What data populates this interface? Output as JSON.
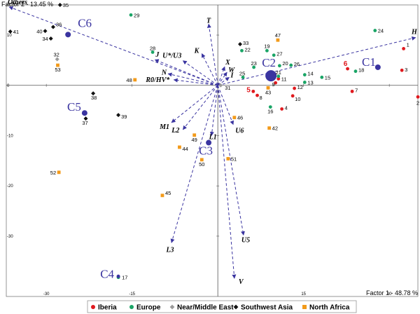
{
  "chart_data": {
    "type": "scatter",
    "xlabel": "Factor 1 - 48.78 %",
    "ylabel": "Factor 2 - 13.45 %",
    "xlim": [
      -37,
      35
    ],
    "ylim": [
      -42,
      16
    ],
    "x_ticks": [
      -30,
      -15,
      0,
      15,
      30
    ],
    "y_ticks": [
      -30,
      -20,
      -10,
      0,
      10
    ],
    "grid": false,
    "legend_position": "bottom-right",
    "colors": {
      "Iberia": "#e0191e",
      "Europe": "#1aa566",
      "Near/Middle East": "#9a9a9a",
      "Southwest Asia": "#111111",
      "North Africa": "#f29a1a",
      "variables": "#3a34a0",
      "centroids": "#3a34a0"
    },
    "series": [
      {
        "name": "Iberia",
        "marker": "circle",
        "points": [
          {
            "label": "1",
            "x": 32.5,
            "y": 7.3
          },
          {
            "label": "2",
            "x": 35.0,
            "y": -2.3
          },
          {
            "label": "3",
            "x": 32.2,
            "y": 3.0
          },
          {
            "label": "4",
            "x": 11.2,
            "y": -4.7
          },
          {
            "label": "5",
            "x": 6.2,
            "y": -1.2
          },
          {
            "label": "6",
            "x": 22.7,
            "y": 3.3
          },
          {
            "label": "7",
            "x": 23.5,
            "y": -1.2
          },
          {
            "label": "8",
            "x": 6.9,
            "y": -2.0
          },
          {
            "label": "9",
            "x": 10.1,
            "y": 0.5
          },
          {
            "label": "10",
            "x": 13.1,
            "y": -2.1
          },
          {
            "label": "11",
            "x": 10.6,
            "y": 1.3
          },
          {
            "label": "12",
            "x": 13.4,
            "y": -0.6
          }
        ]
      },
      {
        "name": "Europe",
        "marker": "circle",
        "points": [
          {
            "label": "13",
            "x": 15.2,
            "y": 0.6
          },
          {
            "label": "14",
            "x": 15.2,
            "y": 2.1
          },
          {
            "label": "15",
            "x": 18.2,
            "y": 1.6
          },
          {
            "label": "16",
            "x": 9.2,
            "y": -4.3
          },
          {
            "label": "17",
            "x": -17.4,
            "y": -38.2
          },
          {
            "label": "18",
            "x": 24.1,
            "y": 2.8
          },
          {
            "label": "19",
            "x": 8.6,
            "y": 6.9
          },
          {
            "label": "20",
            "x": 10.8,
            "y": 3.9
          },
          {
            "label": "21",
            "x": 10.6,
            "y": 1.8
          },
          {
            "label": "22",
            "x": 4.2,
            "y": 6.9
          },
          {
            "label": "23",
            "x": 6.3,
            "y": 3.6
          },
          {
            "label": "24",
            "x": 27.5,
            "y": 10.9
          },
          {
            "label": "25",
            "x": 4.4,
            "y": 1.6
          },
          {
            "label": "26",
            "x": 12.8,
            "y": 4.0
          },
          {
            "label": "27",
            "x": 9.8,
            "y": 6.0
          },
          {
            "label": "28",
            "x": -11.4,
            "y": 6.6
          },
          {
            "label": "29",
            "x": -15.2,
            "y": 14.0
          }
        ]
      },
      {
        "name": "Near/Middle East",
        "marker": "diamond",
        "points": [
          {
            "label": "31",
            "x": 0.5,
            "y": 0.0
          },
          {
            "label": "32",
            "x": -28.1,
            "y": 5.2
          }
        ]
      },
      {
        "name": "Southwest Asia",
        "marker": "diamond",
        "points": [
          {
            "label": "33",
            "x": 3.9,
            "y": 8.2
          },
          {
            "label": "34",
            "x": -29.2,
            "y": 9.3
          },
          {
            "label": "35",
            "x": -27.6,
            "y": 16.0
          },
          {
            "label": "36",
            "x": -28.8,
            "y": 11.6
          },
          {
            "label": "37",
            "x": -23.1,
            "y": -6.6
          },
          {
            "label": "38",
            "x": -21.8,
            "y": -1.6
          },
          {
            "label": "39",
            "x": -17.4,
            "y": -5.9
          },
          {
            "label": "40",
            "x": -30.2,
            "y": 10.8
          },
          {
            "label": "41",
            "x": -36.3,
            "y": 10.7
          }
        ]
      },
      {
        "name": "North Africa",
        "marker": "square",
        "points": [
          {
            "label": "42",
            "x": 9.0,
            "y": -8.5
          },
          {
            "label": "43",
            "x": 8.8,
            "y": -0.5
          },
          {
            "label": "44",
            "x": -6.7,
            "y": -12.3
          },
          {
            "label": "45",
            "x": -9.7,
            "y": -21.9
          },
          {
            "label": "46",
            "x": 2.9,
            "y": -6.4
          },
          {
            "label": "47",
            "x": 10.5,
            "y": 9.0
          },
          {
            "label": "48",
            "x": -14.5,
            "y": 1.1
          },
          {
            "label": "49",
            "x": -4.1,
            "y": -9.9
          },
          {
            "label": "50",
            "x": -2.8,
            "y": -14.8
          },
          {
            "label": "51",
            "x": 1.8,
            "y": -14.6
          },
          {
            "label": "52",
            "x": -27.8,
            "y": -17.3
          },
          {
            "label": "53",
            "x": -28.0,
            "y": 4.0
          }
        ]
      }
    ],
    "centroids": [
      {
        "label": "C1",
        "x": 28.0,
        "y": 3.6,
        "size": "medium"
      },
      {
        "label": "C2",
        "x": 9.3,
        "y": 1.9,
        "size": "large"
      },
      {
        "label": "C3",
        "x": -1.6,
        "y": -11.4,
        "size": "medium"
      },
      {
        "label": "C4",
        "x": -17.4,
        "y": -38.0,
        "size": "small"
      },
      {
        "label": "C5",
        "x": -23.3,
        "y": -5.5,
        "size": "medium"
      },
      {
        "label": "C6",
        "x": -26.2,
        "y": 10.1,
        "size": "medium"
      }
    ],
    "variables": [
      {
        "label": "Others",
        "x": -36.5,
        "y": 15.6
      },
      {
        "label": "H",
        "x": 34.6,
        "y": 9.5
      },
      {
        "label": "T",
        "x": -1.6,
        "y": 12.2
      },
      {
        "label": "K",
        "x": -2.8,
        "y": 6.3
      },
      {
        "label": "U*/U3",
        "x": -6.1,
        "y": 4.9
      },
      {
        "label": "J",
        "x": -11.0,
        "y": 5.1
      },
      {
        "label": "N",
        "x": -8.7,
        "y": 2.3
      },
      {
        "label": "R0/HV*",
        "x": -7.7,
        "y": 1.1
      },
      {
        "label": "X",
        "x": 1.2,
        "y": 3.7
      },
      {
        "label": "W",
        "x": 1.6,
        "y": 2.6
      },
      {
        "label": "I",
        "x": 2.0,
        "y": 1.6
      },
      {
        "label": "M1",
        "x": -8.1,
        "y": -7.4
      },
      {
        "label": "L2",
        "x": -6.1,
        "y": -8.8
      },
      {
        "label": "L1",
        "x": -1.1,
        "y": -10.0
      },
      {
        "label": "U6",
        "x": 2.7,
        "y": -7.8
      },
      {
        "label": "L3",
        "x": -8.1,
        "y": -31.3
      },
      {
        "label": "U5",
        "x": 4.5,
        "y": -29.8
      },
      {
        "label": "V",
        "x": 2.9,
        "y": -38.4
      }
    ]
  }
}
